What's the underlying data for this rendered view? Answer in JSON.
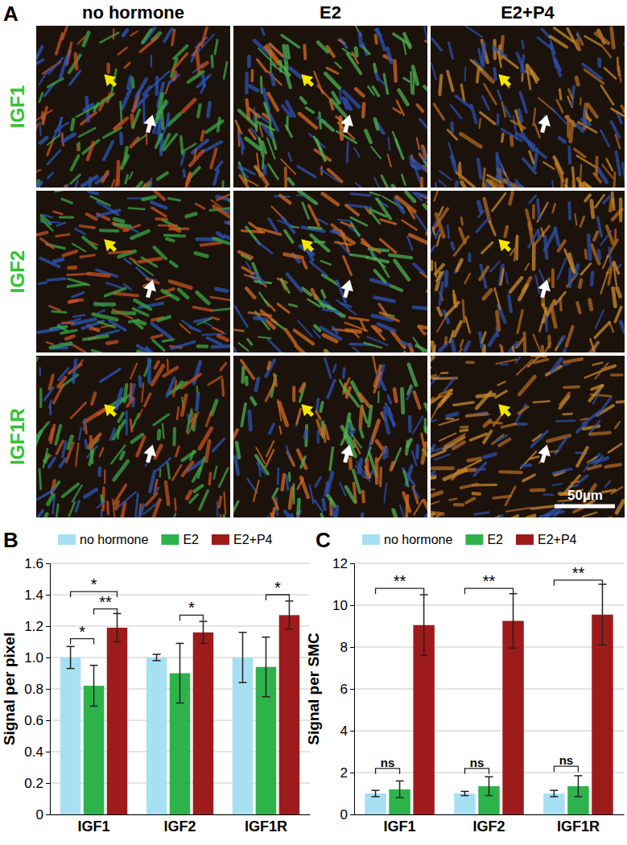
{
  "panel_a": {
    "label": "A",
    "columns": [
      "no hormone",
      "E2",
      "E2+P4"
    ],
    "rows": [
      "IGF1",
      "IGF2",
      "IGF1R"
    ],
    "scale_bar": "50µm"
  },
  "chart_data": [
    {
      "type": "bar",
      "title": "B",
      "y_label": "Signal per pixel",
      "categories": [
        "IGF1",
        "IGF2",
        "IGF1R"
      ],
      "series": [
        {
          "name": "no hormone",
          "color": "#a6e0f2",
          "values": [
            1.0,
            1.0,
            1.0
          ],
          "errors": [
            0.07,
            0.02,
            0.16
          ]
        },
        {
          "name": "E2",
          "color": "#2eb34a",
          "values": [
            0.82,
            0.9,
            0.94
          ],
          "errors": [
            0.13,
            0.19,
            0.19
          ]
        },
        {
          "name": "E2+P4",
          "color": "#9e1b1b",
          "values": [
            1.19,
            1.16,
            1.27
          ],
          "errors": [
            0.09,
            0.07,
            0.09
          ]
        }
      ],
      "ylim": [
        0,
        1.6
      ],
      "yticks": [
        0,
        0.2,
        0.4,
        0.6,
        0.8,
        {
          "value": 1,
          "label": "1.0"
        },
        1.2,
        1.4,
        1.6
      ],
      "grid": true,
      "legend": "top",
      "annotations": [
        {
          "text": "*",
          "category": 0,
          "from": 0,
          "to": 2,
          "y": 1.42
        },
        {
          "text": "*",
          "category": 0,
          "from": 0,
          "to": 1,
          "y": 1.12
        },
        {
          "text": "**",
          "category": 0,
          "from": 1,
          "to": 2,
          "y": 1.31
        },
        {
          "text": "*",
          "category": 1,
          "from": 1,
          "to": 2,
          "y": 1.27
        },
        {
          "text": "*",
          "category": 2,
          "from": 1,
          "to": 2,
          "y": 1.4
        }
      ]
    },
    {
      "type": "bar",
      "title": "C",
      "y_label": "Signal per SMC",
      "categories": [
        "IGF1",
        "IGF2",
        "IGF1R"
      ],
      "series": [
        {
          "name": "no hormone",
          "color": "#a6e0f2",
          "values": [
            1.0,
            1.0,
            1.0
          ],
          "errors": [
            0.15,
            0.1,
            0.15
          ]
        },
        {
          "name": "E2",
          "color": "#2eb34a",
          "values": [
            1.2,
            1.35,
            1.35
          ],
          "errors": [
            0.4,
            0.45,
            0.5
          ]
        },
        {
          "name": "E2+P4",
          "color": "#9e1b1b",
          "values": [
            9.05,
            9.25,
            9.55
          ],
          "errors": [
            1.45,
            1.3,
            1.45
          ]
        }
      ],
      "ylim": [
        0,
        12
      ],
      "yticks": [
        0,
        2,
        4,
        6,
        8,
        10,
        12
      ],
      "grid": true,
      "legend": "top",
      "annotations": [
        {
          "text": "**",
          "category": 0,
          "from": 0,
          "to": 2,
          "y": 10.8
        },
        {
          "text": "ns",
          "category": 0,
          "from": 0,
          "to": 1,
          "y": 2.2
        },
        {
          "text": "**",
          "category": 1,
          "from": 0,
          "to": 2,
          "y": 10.8
        },
        {
          "text": "ns",
          "category": 1,
          "from": 0,
          "to": 1,
          "y": 2.2
        },
        {
          "text": "**",
          "category": 2,
          "from": 0,
          "to": 2,
          "y": 11.2
        },
        {
          "text": "ns",
          "category": 2,
          "from": 0,
          "to": 1,
          "y": 2.3
        }
      ]
    }
  ]
}
